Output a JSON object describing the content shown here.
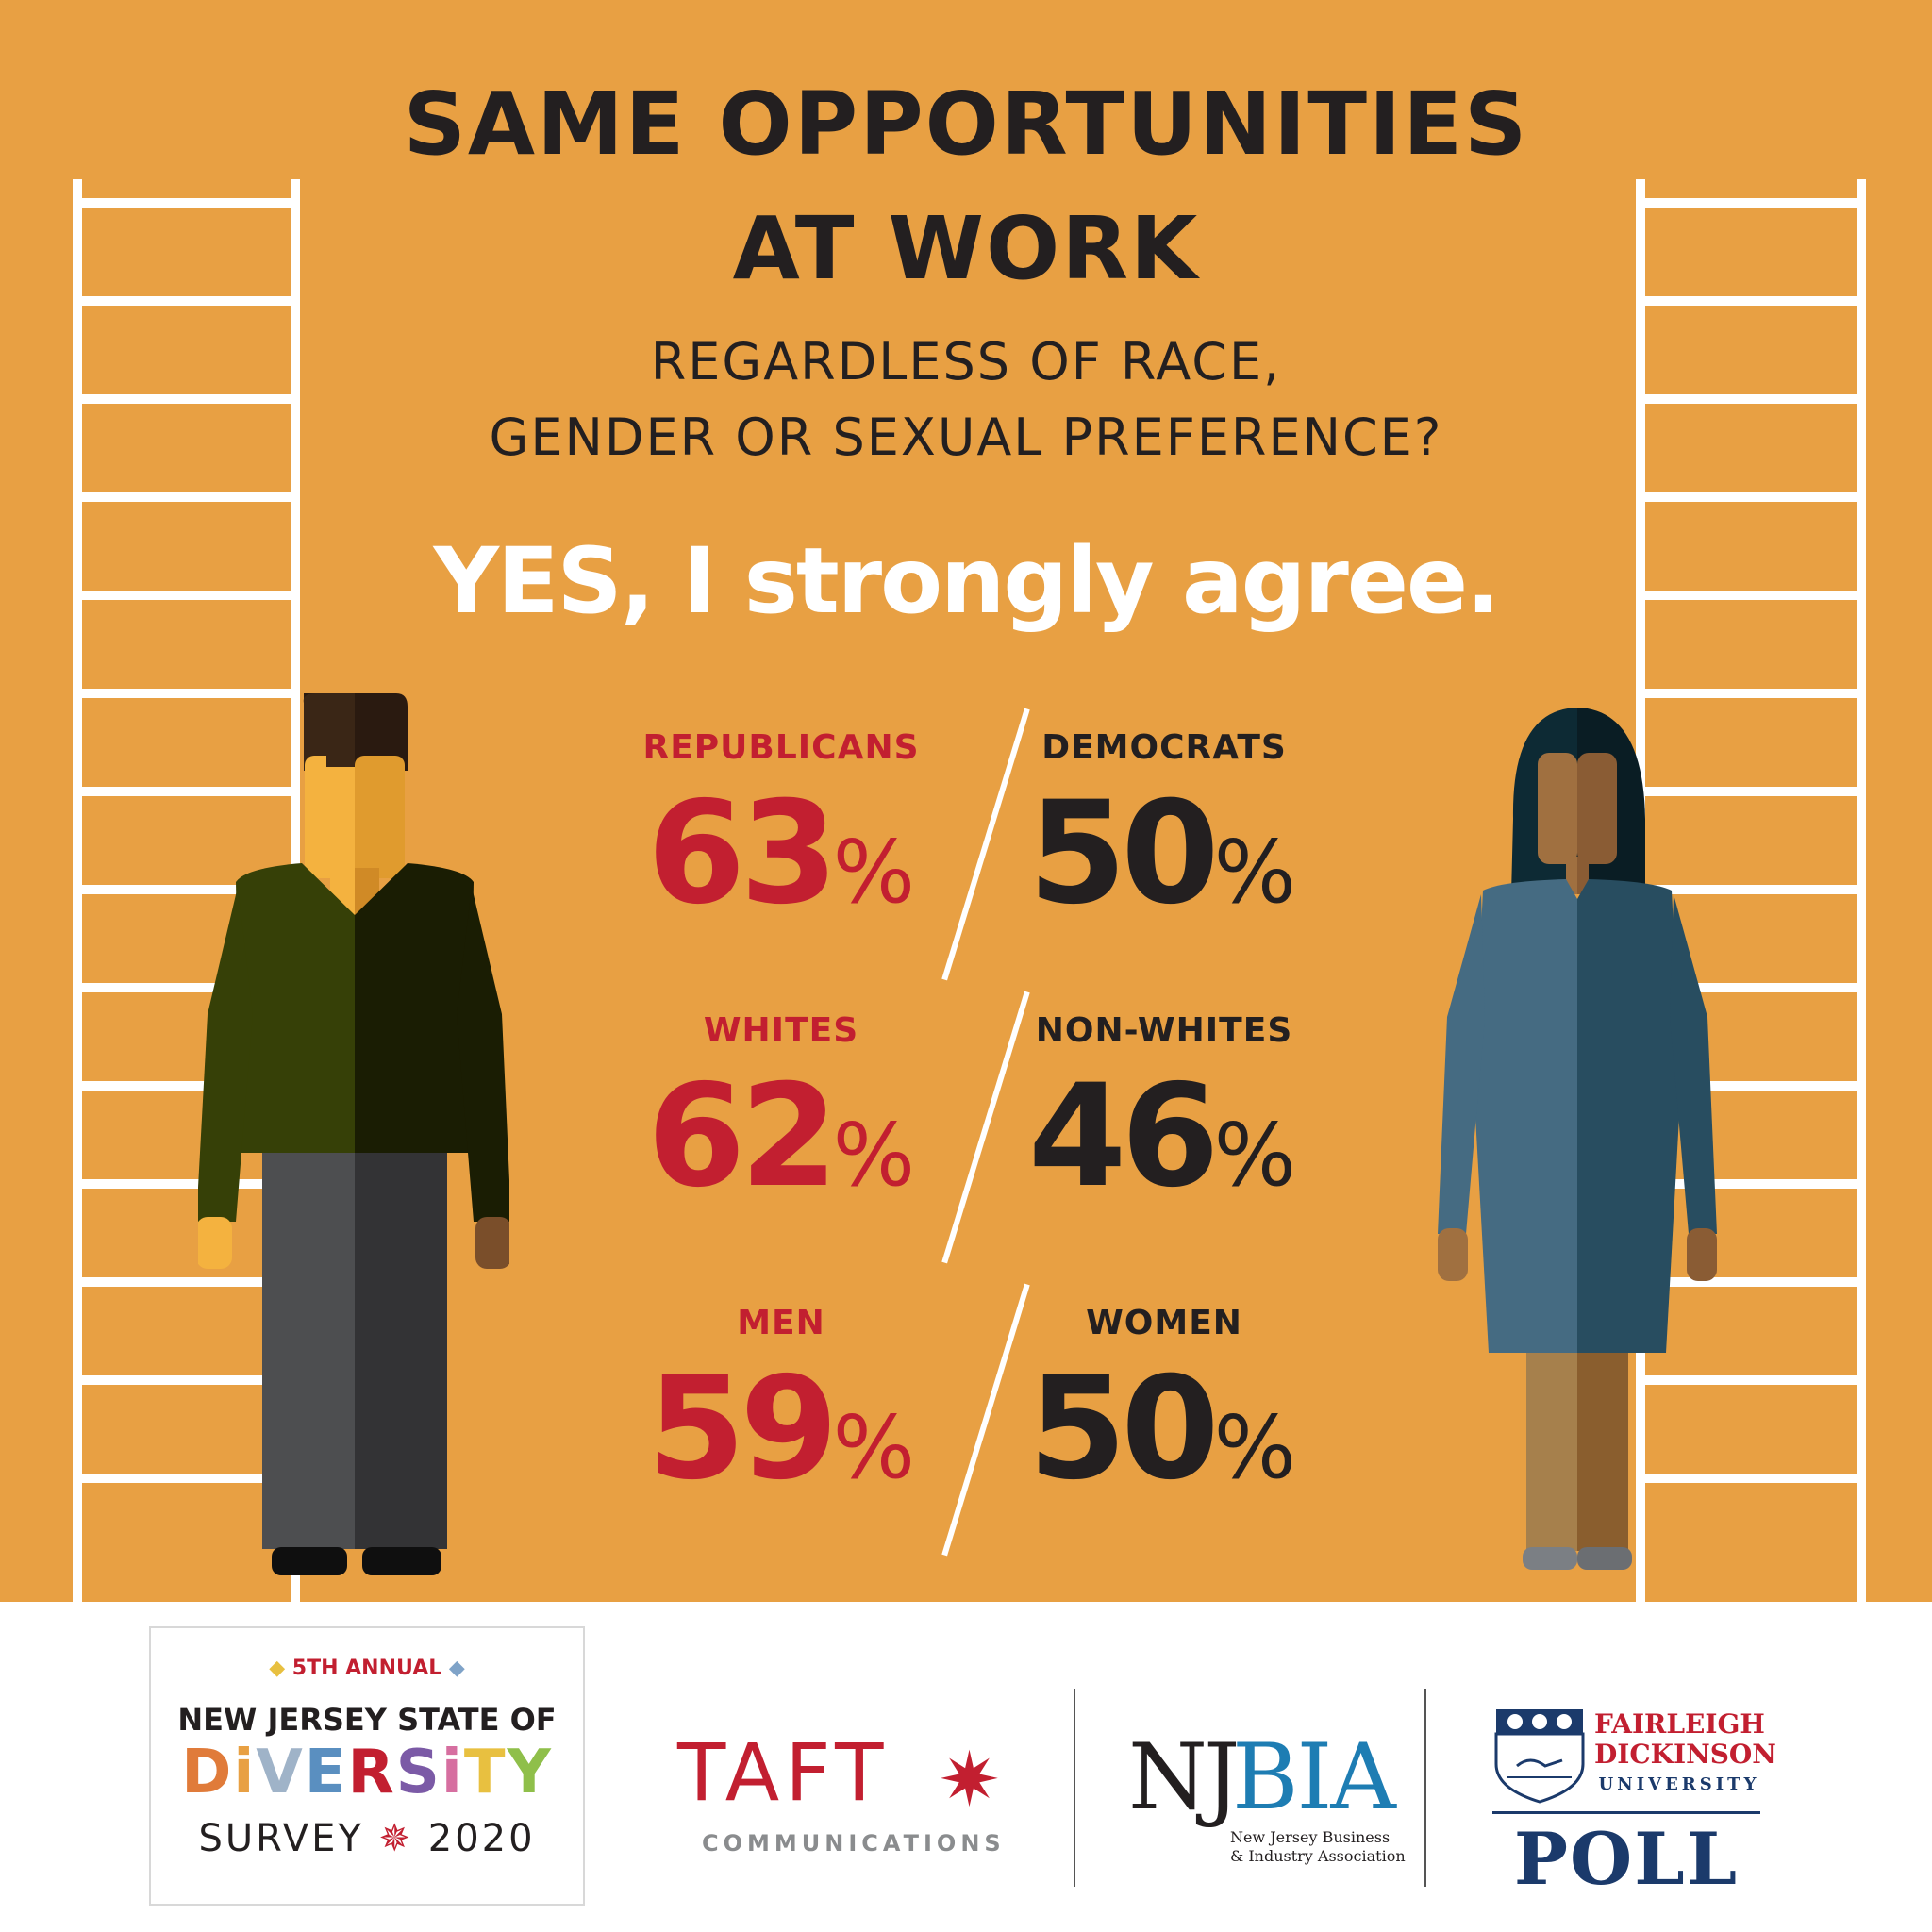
{
  "header": {
    "title_line1": "SAME OPPORTUNITIES",
    "title_line2": "AT WORK",
    "subtitle_line1": "REGARDLESS OF RACE,",
    "subtitle_line2": "GENDER OR SEXUAL PREFERENCE?",
    "headline": "YES, I strongly agree."
  },
  "stats": [
    {
      "left_label": "REPUBLICANS",
      "left_value": "63",
      "right_label": "DEMOCRATS",
      "right_value": "50"
    },
    {
      "left_label": "WHITES",
      "left_value": "62",
      "right_label": "NON-WHITES",
      "right_value": "46"
    },
    {
      "left_label": "MEN",
      "left_value": "59",
      "right_label": "WOMEN",
      "right_value": "50"
    }
  ],
  "percent_sign": "%",
  "footer": {
    "survey_logo": {
      "edition": "5TH ANNUAL",
      "line1": "NEW JERSEY STATE OF",
      "line2": "DiVERSiTY",
      "survey_word": "SURVEY",
      "year": "2020"
    },
    "taft": {
      "name": "TAFT",
      "sub": "COMMUNICATIONS"
    },
    "njbia": {
      "nj": "NJ",
      "bia": "BIA",
      "sub_line1": "New Jersey Business",
      "sub_line2": "& Industry Association"
    },
    "fdu": {
      "line1": "FAIRLEIGH",
      "line2": "DICKINSON",
      "line3": "UNIVERSITY",
      "poll": "POLL"
    }
  },
  "colors": {
    "background": "#e8a043",
    "accent_red": "#c21f30",
    "text_dark": "#231f20",
    "white": "#ffffff"
  }
}
